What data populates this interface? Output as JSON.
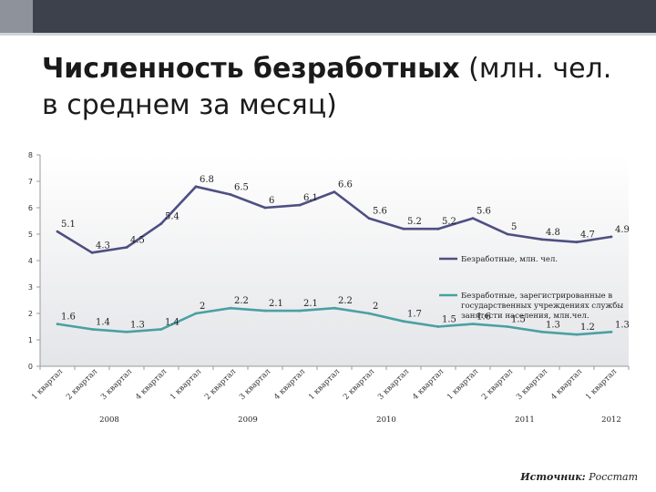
{
  "slide": {
    "title_bold": "Численность безработных",
    "title_rest": " (млн. чел.",
    "title_line2": "в среднем за месяц)"
  },
  "source": {
    "label": "Источник:",
    "value": " Росстат"
  },
  "colors": {
    "series1": "#4e4f82",
    "series2": "#4aa0a3",
    "plot_bg_top": "#ffffff",
    "plot_bg_bottom": "#e4e5e8"
  },
  "chart_data": {
    "type": "line",
    "ylim": [
      0,
      8
    ],
    "yticks": [
      "0",
      "1",
      "2",
      "3",
      "4",
      "5",
      "6",
      "7",
      "8"
    ],
    "grid": false,
    "legend_position": "right",
    "categories": [
      "1 квартал",
      "2 квартал",
      "3 квартал",
      "4 квартал",
      "1 квартал",
      "2 квартал",
      "3 квартал",
      "4 квартал",
      "1 квартал",
      "2 квартал",
      "3 квартал",
      "4 квартал",
      "1 квартал",
      "2 квартал",
      "3 квартал",
      "4 квартал",
      "1 квартал"
    ],
    "years": [
      "2008",
      "2009",
      "2010",
      "2011",
      "2012"
    ],
    "series": [
      {
        "name": "Безработные, млн. чел.",
        "values": [
          5.1,
          4.3,
          4.5,
          5.4,
          6.8,
          6.5,
          6,
          6.1,
          6.6,
          5.6,
          5.2,
          5.2,
          5.6,
          5,
          4.8,
          4.7,
          4.9
        ],
        "labels": [
          "5.1",
          "4.3",
          "4.5",
          "5.4",
          "6.8",
          "6.5",
          "6",
          "6.1",
          "6.6",
          "5.6",
          "5.2",
          "5.2",
          "5.6",
          "5",
          "4.8",
          "4.7",
          "4.9"
        ]
      },
      {
        "name": "Безработные, зарегистрированные в государственных учреждениях службы занятости населения, млн.чел.",
        "legend_lines": [
          "Безработные, зарегистрированные в",
          "государственных учреждениях службы",
          "занятости населения, млн.чел."
        ],
        "values": [
          1.6,
          1.4,
          1.3,
          1.4,
          2,
          2.2,
          2.1,
          2.1,
          2.2,
          2,
          1.7,
          1.5,
          1.6,
          1.5,
          1.3,
          1.2,
          1.3
        ],
        "labels": [
          "1.6",
          "1.4",
          "1.3",
          "1.4",
          "2",
          "2.2",
          "2.1",
          "2.1",
          "2.2",
          "2",
          "1.7",
          "1.5",
          "1.6",
          "1.5",
          "1.3",
          "1.2",
          "1.3"
        ]
      }
    ]
  }
}
